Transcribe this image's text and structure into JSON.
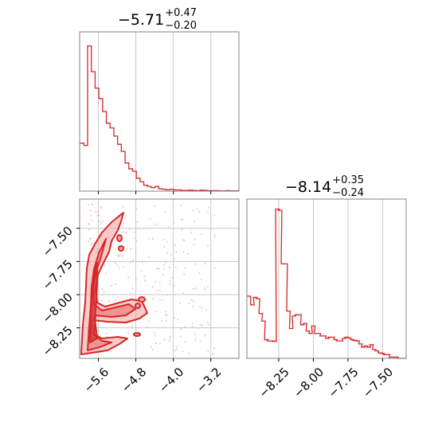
{
  "colors": {
    "line": "#d62728",
    "fill": "#f4a6a6",
    "grid": "#c8c8c8",
    "frame": "#808080"
  },
  "chart_data": [
    {
      "type": "step histogram",
      "panel": "top-left",
      "title_value": "−5.71",
      "title_plus": "+0.47",
      "title_minus": "−0.20",
      "xlim": [
        -6.0,
        -2.6
      ],
      "x_ticks": [
        -5.6,
        -4.8,
        -4.0,
        -3.2
      ],
      "grid": true,
      "x_values": [
        -5.97,
        -5.93,
        -5.89,
        -5.85,
        -5.81,
        -5.77,
        -5.73,
        -5.69,
        -5.65,
        -5.61,
        -5.57,
        -5.53,
        -5.49,
        -5.45,
        -5.41,
        -5.37,
        -5.33,
        -5.29,
        -5.25,
        -5.21,
        -5.17,
        -5.13,
        -5.09,
        -5.05,
        -5.01,
        -4.97,
        -4.93,
        -4.89,
        -4.85,
        -4.81,
        -4.77,
        -4.73,
        -4.69,
        -4.65,
        -4.61,
        -4.57,
        -4.53,
        -4.49,
        -4.45,
        -4.41,
        -4.37,
        -4.33,
        -4.29,
        -4.25,
        -4.21,
        -4.17,
        -4.13,
        -4.09,
        -4.05,
        -4.01,
        -3.97,
        -3.93,
        -3.89,
        -3.85,
        -3.81,
        -3.77,
        -3.73,
        -3.69,
        -3.65,
        -3.61,
        -3.57,
        -3.53,
        -3.49,
        -3.45,
        -3.41,
        -3.37,
        -3.33,
        -3.29,
        -3.25,
        -3.21,
        -3.17,
        -3.13,
        -3.09,
        -3.05,
        -3.01,
        -2.97,
        -2.93,
        -2.89,
        -2.85,
        -2.81,
        -2.77,
        -2.73,
        -2.69,
        -2.65,
        -2.61
      ],
      "counts": [
        205,
        205,
        195,
        195,
        620,
        620,
        510,
        510,
        440,
        440,
        395,
        395,
        340,
        340,
        290,
        290,
        270,
        270,
        235,
        235,
        200,
        200,
        170,
        170,
        120,
        120,
        95,
        95,
        85,
        85,
        55,
        55,
        40,
        40,
        25,
        25,
        20,
        20,
        15,
        15,
        20,
        20,
        10,
        10,
        8,
        8,
        6,
        6,
        8,
        8,
        5,
        5,
        5,
        5,
        3,
        3,
        3,
        3,
        4,
        4,
        3,
        3,
        2,
        2,
        4,
        4,
        3,
        3,
        2,
        2,
        2,
        2,
        2,
        2,
        1,
        1,
        1,
        1,
        2,
        2,
        1,
        1,
        1,
        1,
        1
      ],
      "ylim": [
        0,
        680
      ]
    },
    {
      "type": "step histogram",
      "panel": "bottom-right",
      "title_value": "−8.14",
      "title_plus": "+0.35",
      "title_minus": "−0.24",
      "xlim": [
        -8.48,
        -7.33
      ],
      "x_ticks": [
        -8.25,
        -8.0,
        -7.75,
        -7.5
      ],
      "grid": true,
      "x_values": [
        -8.465,
        -8.44,
        -8.42,
        -8.4,
        -8.38,
        -8.36,
        -8.34,
        -8.32,
        -8.3,
        -8.28,
        -8.26,
        -8.24,
        -8.22,
        -8.2,
        -8.18,
        -8.16,
        -8.14,
        -8.12,
        -8.1,
        -8.08,
        -8.06,
        -8.04,
        -8.02,
        -8.0,
        -7.98,
        -7.96,
        -7.94,
        -7.92,
        -7.9,
        -7.88,
        -7.86,
        -7.84,
        -7.82,
        -7.8,
        -7.78,
        -7.76,
        -7.74,
        -7.72,
        -7.7,
        -7.68,
        -7.66,
        -7.64,
        -7.62,
        -7.6,
        -7.58,
        -7.56,
        -7.54,
        -7.52,
        -7.5,
        -7.48,
        -7.46,
        -7.44,
        -7.42,
        -7.4,
        -7.38,
        -7.36,
        -7.34
      ],
      "counts": [
        250,
        215,
        245,
        240,
        180,
        150,
        75,
        70,
        70,
        68,
        600,
        595,
        380,
        380,
        190,
        120,
        170,
        175,
        175,
        135,
        140,
        110,
        100,
        130,
        100,
        100,
        90,
        90,
        80,
        85,
        85,
        75,
        70,
        70,
        80,
        85,
        82,
        75,
        72,
        70,
        58,
        45,
        50,
        45,
        55,
        35,
        30,
        22,
        20,
        15,
        15,
        5,
        5,
        5,
        0,
        0,
        0
      ],
      "ylim": [
        0,
        640
      ]
    },
    {
      "type": "2D contour",
      "panel": "bottom-left",
      "xlim": [
        -6.0,
        -2.6
      ],
      "ylim": [
        -8.48,
        -7.28
      ],
      "x_ticks": [
        -5.6,
        -4.8,
        -4.0,
        -3.2
      ],
      "y_ticks": [
        -7.5,
        -7.75,
        -8.0,
        -8.25
      ],
      "grid": true
    }
  ]
}
